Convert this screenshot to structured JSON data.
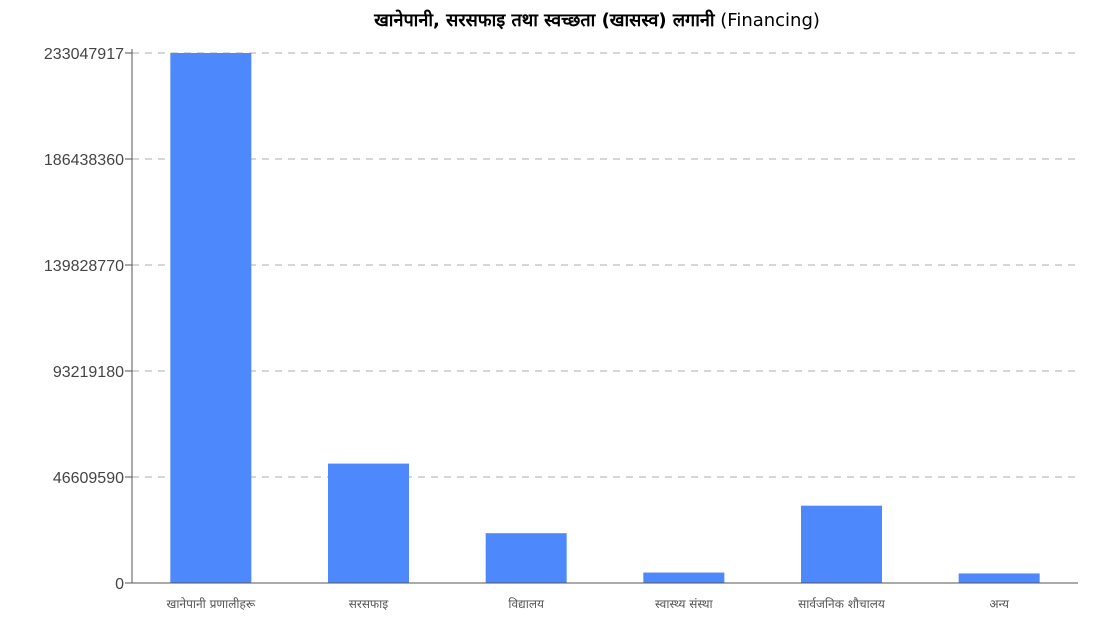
{
  "chart_data": {
    "type": "bar",
    "title": "खानेपानी, सरसफाइ तथा स्वच्छता (खासस्व) लगानी",
    "title_suffix": "(Financing)",
    "xlabel": "",
    "ylabel": "",
    "categories": [
      "खानेपानी प्रणालीहरू",
      "सरसफाइ",
      "विद्यालय",
      "स्वास्थ्य संस्था",
      "सार्वजनिक शौचालय",
      "अन्य"
    ],
    "values": [
      233047917,
      52500000,
      21900000,
      4600000,
      34000000,
      4200000
    ],
    "ylim": [
      0,
      233047917
    ],
    "yticks": [
      0,
      46609590,
      93219180,
      139828770,
      186438360,
      233047917
    ],
    "grid": true,
    "grid_style": "dashed",
    "legend": "none",
    "bar_color": "#4d88fd"
  }
}
